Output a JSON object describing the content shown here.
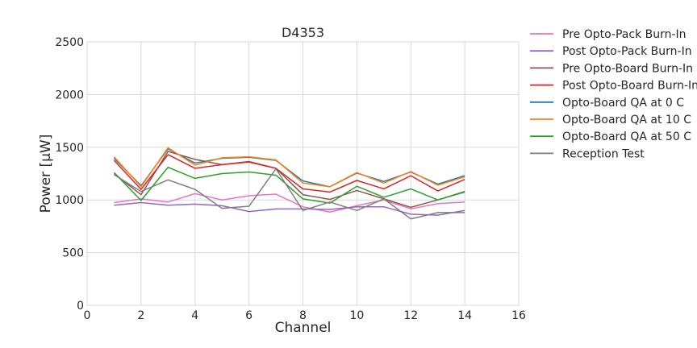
{
  "chart_data": {
    "type": "line",
    "title": "D4353",
    "xlabel": "Channel",
    "ylabel": "Power [µW]",
    "xlim": [
      0,
      16
    ],
    "ylim": [
      0,
      2500
    ],
    "x_ticks": [
      0,
      2,
      4,
      6,
      8,
      10,
      12,
      14,
      16
    ],
    "y_ticks": [
      0,
      500,
      1000,
      1500,
      2000,
      2500
    ],
    "grid": true,
    "legend_placement": "outside-right",
    "x": [
      1,
      2,
      3,
      4,
      5,
      6,
      7,
      8,
      9,
      10,
      11,
      12,
      13,
      14
    ],
    "series": [
      {
        "name": "Pre Opto-Pack Burn-In",
        "color": "#e377c2",
        "values": [
          975,
          1010,
          980,
          1060,
          1000,
          1040,
          1055,
          935,
          885,
          945,
          1000,
          915,
          965,
          980
        ]
      },
      {
        "name": "Post Opto-Pack Burn-In",
        "color": "#9467bd",
        "values": [
          950,
          975,
          950,
          960,
          945,
          890,
          915,
          915,
          910,
          935,
          935,
          865,
          855,
          900
        ]
      },
      {
        "name": "Pre Opto-Board Burn-In",
        "color": "#8c564b",
        "values": [
          1250,
          1050,
          1460,
          1385,
          1335,
          1365,
          1300,
          1050,
          1005,
          1090,
          1010,
          930,
          1000,
          1080
        ]
      },
      {
        "name": "Post Opto-Board Burn-In",
        "color": "#d62728",
        "values": [
          1375,
          1100,
          1430,
          1300,
          1335,
          1360,
          1300,
          1105,
          1075,
          1185,
          1105,
          1230,
          1085,
          1195
        ]
      },
      {
        "name": "Opto-Board QA at 0 C",
        "color": "#1f77b4",
        "values": [
          1395,
          1135,
          1485,
          1350,
          1395,
          1405,
          1375,
          1180,
          1125,
          1255,
          1175,
          1265,
          1150,
          1230
        ]
      },
      {
        "name": "Opto-Board QA at 10 C",
        "color": "#ff7f0e",
        "values": [
          1410,
          1125,
          1495,
          1330,
          1400,
          1410,
          1380,
          1160,
          1125,
          1260,
          1160,
          1270,
          1140,
          1220
        ]
      },
      {
        "name": "Opto-Board QA at 50 C",
        "color": "#2ca02c",
        "values": [
          1260,
          995,
          1310,
          1205,
          1250,
          1265,
          1235,
          1010,
          970,
          1130,
          1025,
          1105,
          1000,
          1075
        ]
      },
      {
        "name": "Reception Test",
        "color": "#7f7f7f",
        "values": [
          1240,
          1080,
          1190,
          1100,
          920,
          940,
          1295,
          900,
          980,
          900,
          1010,
          820,
          880,
          880
        ]
      }
    ]
  }
}
